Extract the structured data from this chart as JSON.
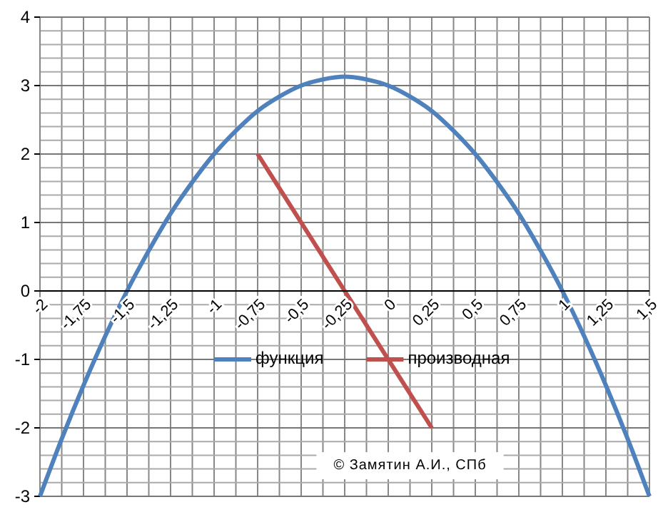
{
  "chart_data": {
    "type": "line",
    "x": [
      -2,
      -1.875,
      -1.75,
      -1.625,
      -1.5,
      -1.375,
      -1.25,
      -1.125,
      -1,
      -0.875,
      -0.75,
      -0.625,
      -0.5,
      -0.375,
      -0.25,
      -0.125,
      0,
      0.125,
      0.25,
      0.375,
      0.5,
      0.625,
      0.75,
      0.875,
      1,
      1.125,
      1.25,
      1.375,
      1.5
    ],
    "series": [
      {
        "name": "функция",
        "color": "#4f81bd",
        "values": [
          -3,
          -2.16,
          -1.38,
          -0.66,
          0,
          0.59,
          1.13,
          1.59,
          2,
          2.34,
          2.63,
          2.84,
          3,
          3.09,
          3.13,
          3.09,
          3,
          2.84,
          2.63,
          2.34,
          2,
          1.59,
          1.13,
          0.59,
          0,
          -0.66,
          -1.38,
          -2.16,
          -3
        ]
      },
      {
        "name": "производная",
        "color": "#c0504d",
        "x": [
          -0.75,
          0.25
        ],
        "values": [
          2,
          -2
        ]
      }
    ],
    "xlim": [
      -2,
      1.5
    ],
    "xticks": [
      {
        "value": -2,
        "label": "-2"
      },
      {
        "value": -1.75,
        "label": "-1,75"
      },
      {
        "value": -1.5,
        "label": "-1,5"
      },
      {
        "value": -1.25,
        "label": "-1,25"
      },
      {
        "value": -1,
        "label": "-1"
      },
      {
        "value": -0.75,
        "label": "-0,75"
      },
      {
        "value": -0.5,
        "label": "-0,5"
      },
      {
        "value": -0.25,
        "label": "-0,25"
      },
      {
        "value": 0,
        "label": "0"
      },
      {
        "value": 0.25,
        "label": "0,25"
      },
      {
        "value": 0.5,
        "label": "0,5"
      },
      {
        "value": 0.75,
        "label": "0,75"
      },
      {
        "value": 1,
        "label": "1"
      },
      {
        "value": 1.25,
        "label": "1,25"
      },
      {
        "value": 1.5,
        "label": "1,5"
      }
    ],
    "ylim": [
      -3,
      4
    ],
    "yticks": [
      -3,
      -2,
      -1,
      0,
      1,
      2,
      3,
      4
    ],
    "grid": true,
    "legend": "center",
    "marker": "none",
    "line_style": "solid",
    "annotations": [
      "© Замятин А.И., СПб"
    ]
  }
}
